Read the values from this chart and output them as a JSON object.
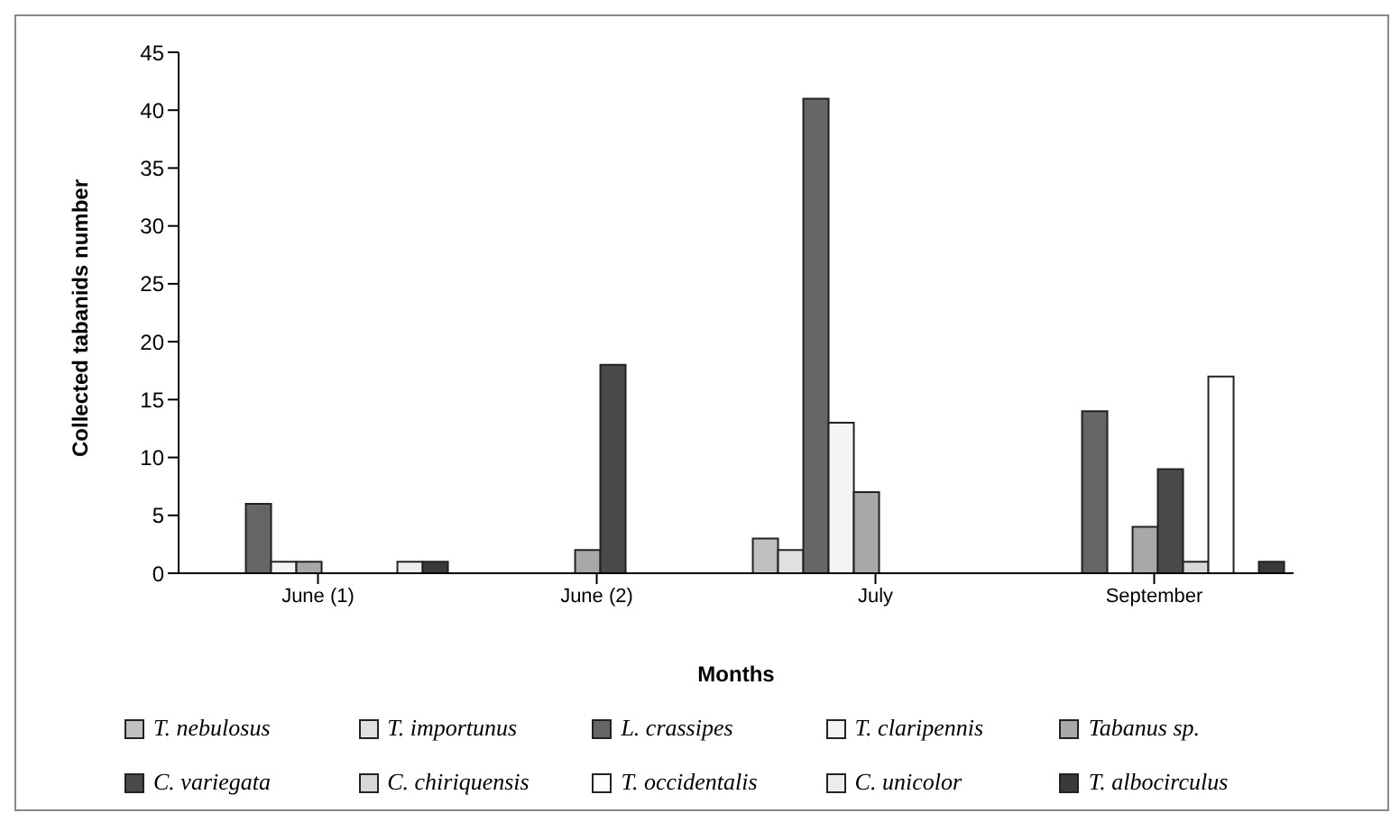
{
  "chart_data": {
    "type": "bar",
    "xlabel": "Months",
    "ylabel": "Collected tabanids number",
    "categories": [
      "June (1)",
      "June (2)",
      "July",
      "September"
    ],
    "series": [
      {
        "name": "T. nebulosus",
        "color": "#c0c0c0",
        "values": [
          0,
          0,
          3,
          0
        ]
      },
      {
        "name": "T. importunus",
        "color": "#e0e0e0",
        "values": [
          0,
          0,
          2,
          0
        ]
      },
      {
        "name": "L. crassipes",
        "color": "#666666",
        "values": [
          6,
          0,
          41,
          14
        ]
      },
      {
        "name": "T. claripennis",
        "color": "#f4f4f4",
        "values": [
          1,
          0,
          13,
          0
        ]
      },
      {
        "name": "Tabanus sp.",
        "color": "#a8a8a8",
        "values": [
          1,
          2,
          7,
          4
        ]
      },
      {
        "name": "C. variegata",
        "color": "#4a4a4a",
        "values": [
          0,
          18,
          0,
          9
        ]
      },
      {
        "name": "C. chiriquensis",
        "color": "#d8d8d8",
        "values": [
          0,
          0,
          0,
          1
        ]
      },
      {
        "name": "T. occidentalis",
        "color": "#ffffff",
        "values": [
          0,
          0,
          0,
          17
        ]
      },
      {
        "name": "C. unicolor",
        "color": "#ececec",
        "values": [
          1,
          0,
          0,
          0
        ]
      },
      {
        "name": "T. albocirculus",
        "color": "#3a3a3a",
        "values": [
          1,
          0,
          0,
          1
        ]
      }
    ],
    "ylim": [
      0,
      45
    ],
    "yticks": [
      0,
      5,
      10,
      15,
      20,
      25,
      30,
      35,
      40,
      45
    ],
    "grid": false,
    "legend": "bottom"
  }
}
